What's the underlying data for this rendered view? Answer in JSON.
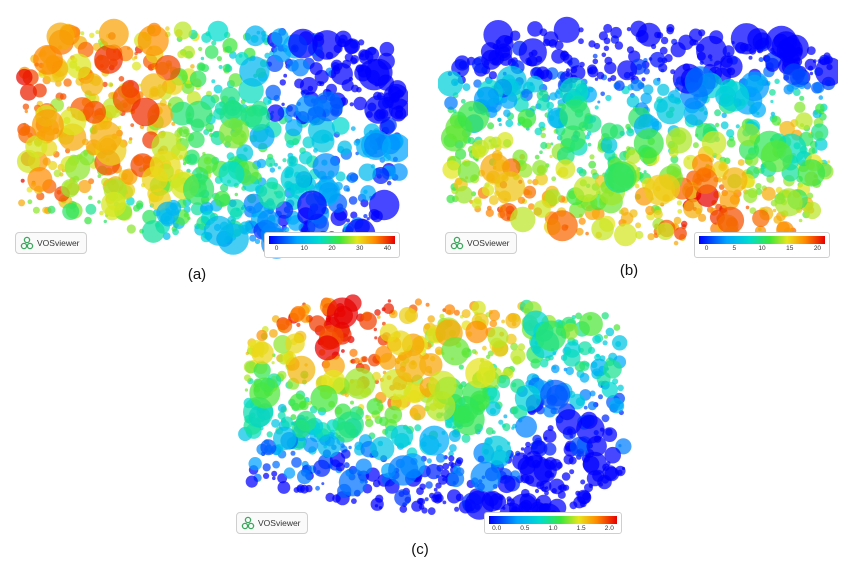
{
  "panels": [
    {
      "id": "a",
      "caption": "(a)",
      "logo_text": "VOSviewer",
      "legend_ticks": [
        "0",
        "10",
        "20",
        "30",
        "40"
      ],
      "legend_max": 40
    },
    {
      "id": "b",
      "caption": "(b)",
      "logo_text": "VOSviewer",
      "legend_ticks": [
        "0",
        "5",
        "10",
        "15",
        "20"
      ],
      "legend_max": 20
    },
    {
      "id": "c",
      "caption": "(c)",
      "logo_text": "VOSviewer",
      "legend_ticks": [
        "0.0",
        "0.5",
        "1.0",
        "1.5",
        "2.0"
      ],
      "legend_max": 2
    }
  ],
  "colors": {
    "gradient": [
      "#0000ff",
      "#00a6ff",
      "#00dccf",
      "#3ce63c",
      "#e6e61e",
      "#ff8c00",
      "#e60000"
    ],
    "logo_green": "#3aa55b"
  }
}
